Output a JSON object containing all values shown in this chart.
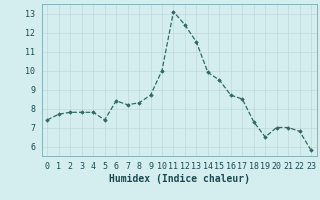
{
  "x": [
    0,
    1,
    2,
    3,
    4,
    5,
    6,
    7,
    8,
    9,
    10,
    11,
    12,
    13,
    14,
    15,
    16,
    17,
    18,
    19,
    20,
    21,
    22,
    23
  ],
  "y": [
    7.4,
    7.7,
    7.8,
    7.8,
    7.8,
    7.4,
    8.4,
    8.2,
    8.3,
    8.7,
    10.0,
    13.1,
    12.4,
    11.5,
    9.9,
    9.5,
    8.7,
    8.5,
    7.3,
    6.5,
    7.0,
    7.0,
    6.8,
    5.8
  ],
  "xlim": [
    -0.5,
    23.5
  ],
  "ylim": [
    5.5,
    13.5
  ],
  "yticks": [
    6,
    7,
    8,
    9,
    10,
    11,
    12,
    13
  ],
  "xticks": [
    0,
    1,
    2,
    3,
    4,
    5,
    6,
    7,
    8,
    9,
    10,
    11,
    12,
    13,
    14,
    15,
    16,
    17,
    18,
    19,
    20,
    21,
    22,
    23
  ],
  "xlabel": "Humidex (Indice chaleur)",
  "line_color": "#2e6b5e",
  "marker": "D",
  "marker_size": 1.8,
  "bg_color": "#d4eef0",
  "grid_color": "#c0d8dc",
  "tick_fontsize": 6.0,
  "xlabel_fontsize": 7.0
}
